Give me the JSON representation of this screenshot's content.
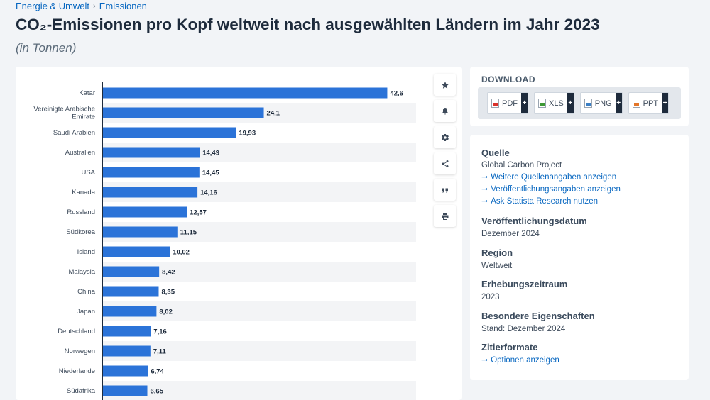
{
  "breadcrumb": {
    "items": [
      "Energie & Umwelt",
      "Emissionen"
    ]
  },
  "page": {
    "title": "CO₂-Emissionen pro Kopf weltweit nach ausgewählten Ländern im Jahr 2023",
    "subtitle": "(in Tonnen)"
  },
  "toolbar": {
    "buttons": [
      {
        "name": "favorite",
        "icon": "star-icon"
      },
      {
        "name": "alert",
        "icon": "bell-icon"
      },
      {
        "name": "settings",
        "icon": "gear-icon"
      },
      {
        "name": "share",
        "icon": "share-icon"
      },
      {
        "name": "cite",
        "icon": "quote-icon"
      },
      {
        "name": "print",
        "icon": "print-icon"
      }
    ]
  },
  "download": {
    "title": "DOWNLOAD",
    "formats": [
      {
        "label": "PDF",
        "color": "#d9322b"
      },
      {
        "label": "XLS",
        "color": "#3d9a35"
      },
      {
        "label": "PNG",
        "color": "#3b7fc4"
      },
      {
        "label": "PPT",
        "color": "#e3762a"
      }
    ],
    "plus": "+"
  },
  "info": {
    "source_head": "Quelle",
    "source_value": "Global Carbon Project",
    "source_links": [
      "Weitere Quellenangaben anzeigen",
      "Veröffentlichungsangaben anzeigen",
      "Ask Statista Research nutzen"
    ],
    "pubdate_head": "Veröffentlichungsdatum",
    "pubdate_value": "Dezember 2024",
    "region_head": "Region",
    "region_value": "Weltweit",
    "period_head": "Erhebungszeitraum",
    "period_value": "2023",
    "special_head": "Besondere Eigenschaften",
    "special_value": "Stand: Dezember 2024",
    "cite_head": "Zitierformate",
    "cite_link": "Optionen anzeigen"
  },
  "chart_data": {
    "type": "bar",
    "orientation": "horizontal",
    "bar_color": "#2b73d8",
    "categories": [
      "Katar",
      "Vereinigte Arabische Emirate",
      "Saudi Arabien",
      "Australien",
      "USA",
      "Kanada",
      "Russland",
      "Südkorea",
      "Island",
      "Malaysia",
      "China",
      "Japan",
      "Deutschland",
      "Norwegen",
      "Niederlande",
      "Südafrika"
    ],
    "category_lines": [
      [
        "Katar"
      ],
      [
        "Vereinigte Arabische",
        "Emirate"
      ],
      [
        "Saudi Arabien"
      ],
      [
        "Australien"
      ],
      [
        "USA"
      ],
      [
        "Kanada"
      ],
      [
        "Russland"
      ],
      [
        "Südkorea"
      ],
      [
        "Island"
      ],
      [
        "Malaysia"
      ],
      [
        "China"
      ],
      [
        "Japan"
      ],
      [
        "Deutschland"
      ],
      [
        "Norwegen"
      ],
      [
        "Niederlande"
      ],
      [
        "Südafrika"
      ]
    ],
    "values": [
      42.6,
      24.1,
      19.93,
      14.49,
      14.45,
      14.16,
      12.57,
      11.15,
      10.02,
      8.42,
      8.35,
      8.02,
      7.16,
      7.11,
      6.74,
      6.65
    ],
    "value_labels": [
      "42,6",
      "24,1",
      "19,93",
      "14,49",
      "14,45",
      "14,16",
      "12,57",
      "11,15",
      "10,02",
      "8,42",
      "8,35",
      "8,02",
      "7,16",
      "7,11",
      "6,74",
      "6,65"
    ],
    "xlim": [
      0,
      50
    ]
  }
}
